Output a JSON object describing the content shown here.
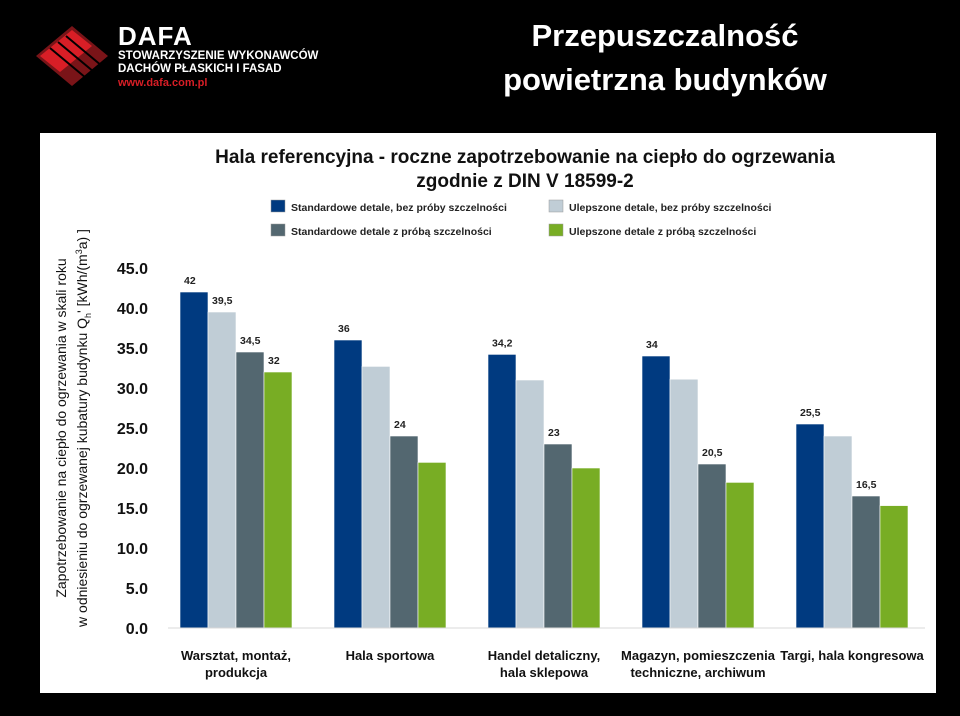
{
  "header": {
    "logo_name": "DAFA",
    "logo_sub_1": "STOWARZYSZENIE WYKONAWCÓW",
    "logo_sub_2": "DACHÓW PŁASKICH I FASAD",
    "logo_url": "www.dafa.com.pl",
    "title_line_1": "Przepuszczalność",
    "title_line_2": "powietrzna budynków"
  },
  "colors": {
    "series": [
      "#003a80",
      "#c0cdd6",
      "#536770",
      "#78ad24"
    ],
    "logo_red": "#d81e26"
  },
  "chart_data": {
    "type": "bar",
    "title_line_1": "Hala referencyjna - roczne zapotrzebowanie na ciepło do ogrzewania",
    "title_line_2": "zgodnie z DIN V 18599-2",
    "ylabel_line_1": "Zapotrzebowanie  na ciepło do ogrzewania w skali roku",
    "ylabel_line_2": "w odniesieniu do ogrzewanej kubatury budynku Q",
    "ylabel_sub": "h",
    "ylabel_unit": "' [kWh/(m",
    "ylabel_sup": "3",
    "ylabel_end": "a) ]",
    "ylim": [
      0,
      45
    ],
    "yticks": [
      "0.0",
      "5.0",
      "10.0",
      "15.0",
      "20.0",
      "25.0",
      "30.0",
      "35.0",
      "40.0",
      "45.0"
    ],
    "categories": [
      [
        "Warsztat, montaż,",
        "produkcja"
      ],
      [
        "Hala sportowa"
      ],
      [
        "Handel detaliczny,",
        "hala sklepowa"
      ],
      [
        "Magazyn, pomieszczenia",
        "techniczne, archiwum"
      ],
      [
        "Targi, hala kongresowa"
      ]
    ],
    "series": [
      {
        "name": "Standardowe detale, bez próby szczelności",
        "values": [
          42,
          36,
          34.2,
          34,
          25.5
        ]
      },
      {
        "name": "Ulepszone detale, bez próby szczelności",
        "values": [
          39.5,
          32.7,
          31,
          31.1,
          24
        ]
      },
      {
        "name": "Standardowe detale z próbą szczelności",
        "values": [
          34.5,
          24,
          23,
          20.5,
          16.5
        ]
      },
      {
        "name": "Ulepszone detale z próbą szczelności",
        "values": [
          32,
          20.7,
          20,
          18.2,
          15.3
        ]
      }
    ],
    "data_labels": [
      [
        "42",
        "39,5",
        "34,5",
        "32"
      ],
      [
        "36",
        null,
        "24",
        null
      ],
      [
        "34,2",
        null,
        "23",
        null
      ],
      [
        "34",
        null,
        "20,5",
        null
      ],
      [
        "25,5",
        null,
        "16,5",
        null
      ]
    ],
    "legend_placement": "top",
    "grid": false
  }
}
